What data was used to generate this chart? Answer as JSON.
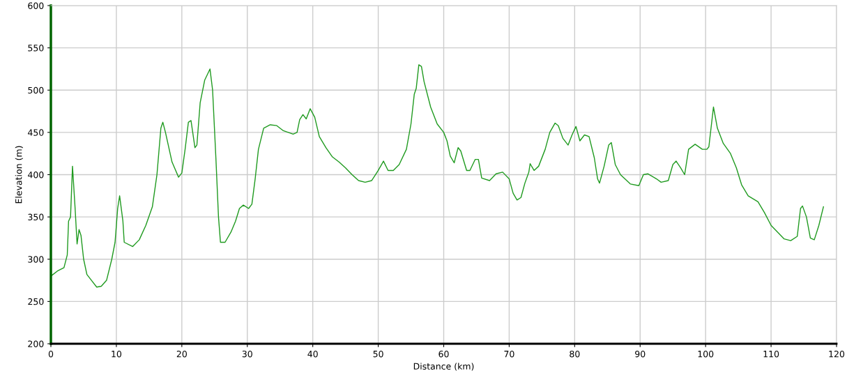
{
  "chart_data": {
    "type": "line",
    "xlabel": "Distance (km)",
    "ylabel": "Elevation (m)",
    "xlim": [
      0,
      120
    ],
    "ylim": [
      200,
      600
    ],
    "xticks": [
      0,
      10,
      20,
      30,
      40,
      50,
      60,
      70,
      80,
      90,
      100,
      110,
      120
    ],
    "yticks": [
      200,
      250,
      300,
      350,
      400,
      450,
      500,
      550,
      600
    ],
    "grid": true,
    "marker": "none",
    "line_style": "solid",
    "series": [
      {
        "color": "#1f9a1f",
        "x": [
          0,
          1,
          2,
          2.5,
          2.7,
          3.0,
          3.3,
          3.7,
          4.0,
          4.3,
          4.6,
          5.0,
          5.5,
          6.2,
          7.0,
          7.7,
          8.5,
          9.3,
          9.8,
          10.2,
          10.5,
          11.0,
          11.2,
          12.5,
          13.5,
          14.5,
          15.5,
          16.2,
          16.8,
          17.1,
          17.5,
          18.5,
          19.5,
          20.0,
          20.5,
          21.0,
          21.4,
          22.0,
          22.3,
          22.8,
          23.5,
          24.3,
          24.7,
          25.2,
          25.6,
          25.9,
          26.6,
          27.5,
          28.2,
          28.8,
          29.4,
          30.2,
          30.7,
          31.2,
          31.7,
          32.5,
          33.5,
          34.5,
          35.5,
          37.0,
          37.6,
          38.0,
          38.5,
          39.0,
          39.6,
          40.3,
          41.0,
          42.0,
          43.0,
          44.0,
          45.0,
          46.0,
          47.0,
          48.0,
          49.0,
          50.0,
          50.8,
          51.5,
          52.3,
          53.2,
          54.3,
          55.0,
          55.5,
          55.8,
          56.2,
          56.6,
          57.0,
          58.0,
          59.0,
          60.0,
          60.5,
          61.0,
          61.6,
          62.2,
          62.6,
          63.5,
          64.0,
          64.8,
          65.3,
          65.8,
          67.0,
          68.0,
          69.0,
          70.0,
          70.6,
          71.2,
          71.8,
          72.4,
          73.0,
          73.2,
          73.8,
          74.5,
          75.5,
          76.2,
          77.0,
          77.5,
          78.2,
          79.0,
          79.6,
          80.2,
          80.8,
          81.5,
          82.2,
          83.0,
          83.5,
          83.8,
          84.5,
          85.2,
          85.6,
          86.2,
          87.0,
          88.5,
          89.8,
          90.5,
          91.2,
          92.5,
          93.2,
          94.3,
          95.0,
          95.5,
          96.2,
          96.8,
          97.4,
          98.4,
          99.5,
          100.2,
          100.5,
          101.2,
          101.8,
          102.7,
          103.8,
          104.7,
          105.5,
          106.5,
          108.0,
          109.0,
          110.0,
          111.0,
          112.0,
          113.0,
          114.0,
          114.5,
          114.8,
          115.4,
          116.0,
          116.6,
          117.3,
          118.0
        ],
        "values": [
          280,
          286,
          290,
          305,
          345,
          350,
          410,
          360,
          318,
          335,
          328,
          300,
          282,
          275,
          267,
          268,
          275,
          300,
          320,
          360,
          375,
          345,
          320,
          315,
          323,
          340,
          362,
          400,
          455,
          462,
          450,
          415,
          397,
          402,
          430,
          462,
          464,
          432,
          435,
          485,
          512,
          525,
          500,
          420,
          350,
          320,
          320,
          332,
          345,
          360,
          364,
          360,
          365,
          395,
          430,
          455,
          459,
          458,
          452,
          448,
          450,
          465,
          471,
          466,
          478,
          468,
          445,
          432,
          421,
          415,
          408,
          400,
          393,
          391,
          393,
          405,
          416,
          405,
          405,
          412,
          430,
          460,
          495,
          502,
          530,
          528,
          510,
          480,
          460,
          450,
          440,
          422,
          414,
          432,
          428,
          405,
          405,
          418,
          418,
          396,
          393,
          401,
          403,
          395,
          378,
          370,
          373,
          390,
          403,
          413,
          405,
          410,
          430,
          450,
          461,
          458,
          443,
          435,
          447,
          457,
          440,
          447,
          445,
          420,
          395,
          390,
          410,
          435,
          438,
          412,
          400,
          389,
          387,
          400,
          401,
          395,
          391,
          393,
          412,
          416,
          408,
          400,
          430,
          436,
          430,
          430,
          433,
          480,
          455,
          437,
          425,
          408,
          388,
          375,
          368,
          355,
          340,
          332,
          324,
          322,
          327,
          360,
          363,
          350,
          325,
          323,
          340,
          362
        ]
      }
    ]
  }
}
